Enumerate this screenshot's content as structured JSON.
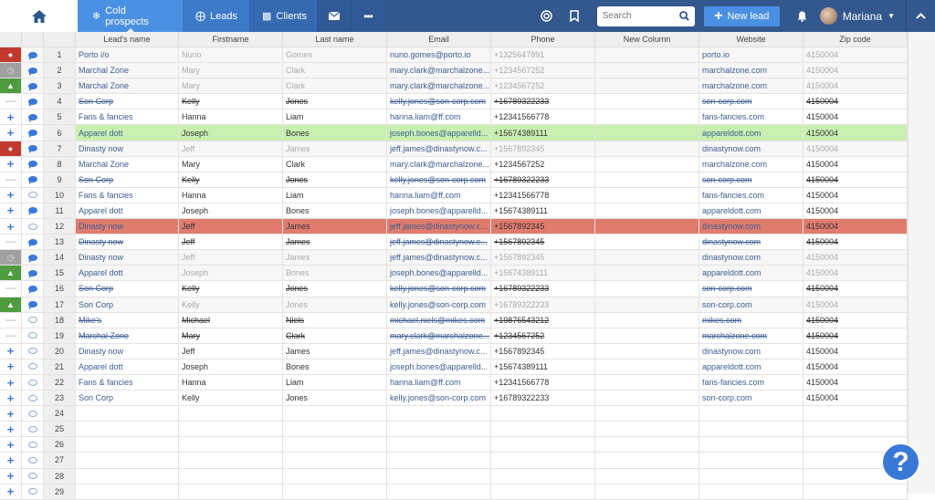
{
  "topbar": {
    "home_icon": "home-icon",
    "tabs": [
      {
        "label": "Cold prospects",
        "icon": "snowflake-icon",
        "active": true
      },
      {
        "label": "Leads",
        "icon": "target-icon"
      },
      {
        "label": "Clients",
        "icon": "handshake-icon"
      }
    ],
    "mail_icon": "envelope-icon",
    "more_icon": "ellipsis-icon",
    "search_placeholder": "Search",
    "new_lead_label": "New lead",
    "user_name": "Mariana",
    "colors": {
      "bar": "#33588d",
      "active_tab": "#4a90e2",
      "accent": "#4a90e2"
    }
  },
  "table": {
    "columns": [
      "Lead's name",
      "Firstname",
      "Last name",
      "Email",
      "Phone",
      "New Column",
      "Website",
      "Zip code"
    ],
    "rows": [
      {
        "n": "1",
        "status": "alert",
        "comment": "filled",
        "style": "muted",
        "lead": "Porto i/o",
        "first": "Nuno",
        "last": "Gomes",
        "email": "nuno.gomes@porto.io",
        "phone": "+1325647891",
        "newcol": "",
        "web": "porto.io",
        "zip": "4150004"
      },
      {
        "n": "2",
        "status": "pending",
        "comment": "filled",
        "style": "muted",
        "lead": "Marchal Zone",
        "first": "Mary",
        "last": "Clark",
        "email": "mary.clark@marchalzone...",
        "phone": "+1234567252",
        "newcol": "",
        "web": "marchalzone.com",
        "zip": "4150004"
      },
      {
        "n": "3",
        "status": "won",
        "comment": "filled",
        "style": "muted",
        "lead": "Marchal Zone",
        "first": "Mary",
        "last": "Clark",
        "email": "mary.clark@marchalzone...",
        "phone": "+1234567252",
        "newcol": "",
        "web": "marchalzone.com",
        "zip": "4150004"
      },
      {
        "n": "4",
        "status": "minus",
        "comment": "filled",
        "style": "strike",
        "lead": "Son Corp",
        "first": "Kelly",
        "last": "Jones",
        "email": "kelly.jones@son-corp.com",
        "phone": "+16789322233",
        "newcol": "",
        "web": "son-corp.com",
        "zip": "4150004"
      },
      {
        "n": "5",
        "status": "plus",
        "comment": "filled",
        "style": "",
        "lead": "Fans & fancies",
        "first": "Hanna",
        "last": "Liam",
        "email": "hanna.liam@ff.com",
        "phone": "+12341566778",
        "newcol": "",
        "web": "fans-fancies.com",
        "zip": "4150004"
      },
      {
        "n": "6",
        "status": "plus",
        "comment": "filled",
        "style": "green",
        "lead": "Apparel dott",
        "first": "Joseph",
        "last": "Bones",
        "email": "joseph.bones@apparelld...",
        "phone": "+15674389111",
        "newcol": "",
        "web": "appareldott.com",
        "zip": "4150004"
      },
      {
        "n": "7",
        "status": "alert",
        "comment": "filled",
        "style": "muted",
        "lead": "Dinasty now",
        "first": "Jeff",
        "last": "James",
        "email": "jeff.james@dinastynow.c...",
        "phone": "+1567892345",
        "newcol": "",
        "web": "dinastynow.com",
        "zip": "4150004"
      },
      {
        "n": "8",
        "status": "plus",
        "comment": "filled",
        "style": "",
        "lead": "Marchal Zone",
        "first": "Mary",
        "last": "Clark",
        "email": "mary.clark@marchalzone...",
        "phone": "+1234567252",
        "newcol": "",
        "web": "marchalzone.com",
        "zip": "4150004"
      },
      {
        "n": "9",
        "status": "minus",
        "comment": "filled",
        "style": "strike",
        "lead": "Son Corp",
        "first": "Kelly",
        "last": "Jones",
        "email": "kelly.jones@son-corp.com",
        "phone": "+16789322233",
        "newcol": "",
        "web": "son-corp.com",
        "zip": "4150004"
      },
      {
        "n": "10",
        "status": "plus",
        "comment": "empty",
        "style": "",
        "lead": "Fans & fancies",
        "first": "Hanna",
        "last": "Liam",
        "email": "hanna.liam@ff.com",
        "phone": "+12341566778",
        "newcol": "",
        "web": "fans-fancies.com",
        "zip": "4150004"
      },
      {
        "n": "11",
        "status": "plus",
        "comment": "filled",
        "style": "",
        "lead": "Apparel dott",
        "first": "Joseph",
        "last": "Bones",
        "email": "joseph.bones@apparelld...",
        "phone": "+15674389111",
        "newcol": "",
        "web": "appareldott.com",
        "zip": "4150004"
      },
      {
        "n": "12",
        "status": "plus",
        "comment": "empty",
        "style": "red",
        "lead": "Dinasty now",
        "first": "Jeff",
        "last": "James",
        "email": "jeff.james@dinastynow.c...",
        "phone": "+1567892345",
        "newcol": "",
        "web": "dinastynow.com",
        "zip": "4150004"
      },
      {
        "n": "13",
        "status": "minus",
        "comment": "filled",
        "style": "strike",
        "lead": "Dinasty now",
        "first": "Jeff",
        "last": "James",
        "email": "jeff.james@dinastynow.c...",
        "phone": "+1567892345",
        "newcol": "",
        "web": "dinastynow.com",
        "zip": "4150004"
      },
      {
        "n": "14",
        "status": "pending",
        "comment": "filled",
        "style": "muted",
        "lead": "Dinasty now",
        "first": "Jeff",
        "last": "James",
        "email": "jeff.james@dinastynow.c...",
        "phone": "+1567892345",
        "newcol": "",
        "web": "dinastynow.com",
        "zip": "4150004"
      },
      {
        "n": "15",
        "status": "won",
        "comment": "filled",
        "style": "muted",
        "lead": "Apparel dott",
        "first": "Joseph",
        "last": "Bones",
        "email": "joseph.bones@apparelld...",
        "phone": "+15674389111",
        "newcol": "",
        "web": "appareldott.com",
        "zip": "4150004"
      },
      {
        "n": "16",
        "status": "minus",
        "comment": "filled",
        "style": "strike",
        "lead": "Son Corp",
        "first": "Kelly",
        "last": "Jones",
        "email": "kelly.jones@son-corp.com",
        "phone": "+16789322233",
        "newcol": "",
        "web": "son-corp.com",
        "zip": "4150004"
      },
      {
        "n": "17",
        "status": "won",
        "comment": "filled",
        "style": "muted",
        "lead": "Son Corp",
        "first": "Kelly",
        "last": "Jones",
        "email": "kelly.jones@son-corp.com",
        "phone": "+16789322233",
        "newcol": "",
        "web": "son-corp.com",
        "zip": "4150004"
      },
      {
        "n": "18",
        "status": "minus",
        "comment": "empty",
        "style": "strike",
        "lead": "Mike's",
        "first": "Michael",
        "last": "Niels",
        "email": "michael.niels@mikes.com",
        "phone": "+19876543212",
        "newcol": "",
        "web": "mikes.com",
        "zip": "4150004"
      },
      {
        "n": "19",
        "status": "minus",
        "comment": "empty",
        "style": "strike",
        "lead": "Marchal Zone",
        "first": "Mary",
        "last": "Clark",
        "email": "mary.clark@marchalzone...",
        "phone": "+1234567252",
        "newcol": "",
        "web": "marchalzone.com",
        "zip": "4150004"
      },
      {
        "n": "20",
        "status": "plus",
        "comment": "empty",
        "style": "",
        "lead": "Dinasty now",
        "first": "Jeff",
        "last": "James",
        "email": "jeff.james@dinastynow.c...",
        "phone": "+1567892345",
        "newcol": "",
        "web": "dinastynow.com",
        "zip": "4150004"
      },
      {
        "n": "21",
        "status": "plus",
        "comment": "empty",
        "style": "",
        "lead": "Apparel dott",
        "first": "Joseph",
        "last": "Bones",
        "email": "joseph.bones@apparelld...",
        "phone": "+15674389111",
        "newcol": "",
        "web": "appareldott.com",
        "zip": "4150004"
      },
      {
        "n": "22",
        "status": "plus",
        "comment": "empty",
        "style": "",
        "lead": "Fans & fancies",
        "first": "Hanna",
        "last": "Liam",
        "email": "hanna.liam@ff.com",
        "phone": "+12341566778",
        "newcol": "",
        "web": "fans-fancies.com",
        "zip": "4150004"
      },
      {
        "n": "23",
        "status": "plus",
        "comment": "empty",
        "style": "",
        "lead": "Son Corp",
        "first": "Kelly",
        "last": "Jones",
        "email": "kelly.jones@son-corp.com",
        "phone": "+16789322233",
        "newcol": "",
        "web": "son-corp.com",
        "zip": "4150004"
      },
      {
        "n": "24",
        "status": "plus",
        "comment": "empty",
        "style": "",
        "lead": "",
        "first": "",
        "last": "",
        "email": "",
        "phone": "",
        "newcol": "",
        "web": "",
        "zip": ""
      },
      {
        "n": "25",
        "status": "plus",
        "comment": "empty",
        "style": "",
        "lead": "",
        "first": "",
        "last": "",
        "email": "",
        "phone": "",
        "newcol": "",
        "web": "",
        "zip": ""
      },
      {
        "n": "26",
        "status": "plus",
        "comment": "empty",
        "style": "",
        "lead": "",
        "first": "",
        "last": "",
        "email": "",
        "phone": "",
        "newcol": "",
        "web": "",
        "zip": ""
      },
      {
        "n": "27",
        "status": "plus",
        "comment": "empty",
        "style": "",
        "lead": "",
        "first": "",
        "last": "",
        "email": "",
        "phone": "",
        "newcol": "",
        "web": "",
        "zip": ""
      },
      {
        "n": "28",
        "status": "plus",
        "comment": "empty",
        "style": "",
        "lead": "",
        "first": "",
        "last": "",
        "email": "",
        "phone": "",
        "newcol": "",
        "web": "",
        "zip": ""
      },
      {
        "n": "29",
        "status": "plus",
        "comment": "empty",
        "style": "",
        "lead": "",
        "first": "",
        "last": "",
        "email": "",
        "phone": "",
        "newcol": "",
        "web": "",
        "zip": ""
      }
    ]
  },
  "help": {
    "label": "?"
  }
}
